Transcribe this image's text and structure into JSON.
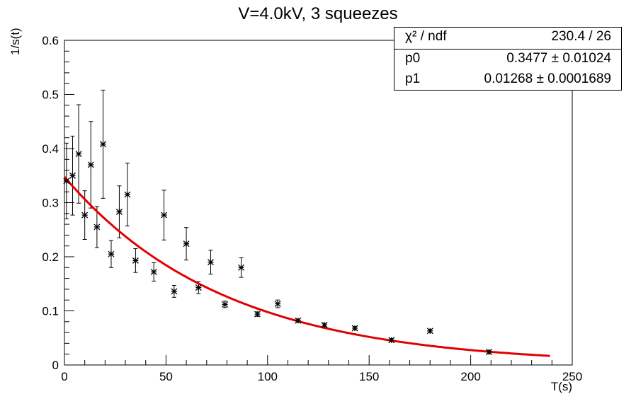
{
  "title": "V=4.0kV, 3 squeezes",
  "stats": {
    "header_key": "χ² / ndf",
    "header_value": "230.4 / 26",
    "rows": [
      {
        "name": "p0",
        "value": "0.3477 ± 0.01024"
      },
      {
        "name": "p1",
        "value": "0.01268 ± 0.0001689"
      }
    ]
  },
  "chart_data": {
    "type": "scatter",
    "title": "V=4.0kV, 3 squeezes",
    "xlabel": "T(s)",
    "ylabel": "1/s(t)",
    "xlim": [
      0,
      250
    ],
    "ylim": [
      0,
      0.6
    ],
    "xticks": [
      0,
      50,
      100,
      150,
      200,
      250
    ],
    "yticks": [
      0,
      0.1,
      0.2,
      0.3,
      0.4,
      0.5,
      0.6
    ],
    "grid": false,
    "colors": {
      "points": "#000000",
      "fit": "#e00000"
    },
    "series": [
      {
        "x": [
          1,
          4,
          7,
          10,
          13,
          16,
          19,
          23,
          27,
          31,
          35,
          44,
          49,
          54,
          60,
          66,
          72,
          79,
          87,
          95,
          105,
          115,
          128,
          143,
          161,
          180,
          209
        ],
        "y": [
          0.34,
          0.35,
          0.39,
          0.277,
          0.37,
          0.255,
          0.408,
          0.205,
          0.283,
          0.315,
          0.193,
          0.172,
          0.277,
          0.136,
          0.224,
          0.143,
          0.19,
          0.112,
          0.18,
          0.094,
          0.113,
          0.082,
          0.074,
          0.068,
          0.046,
          0.063,
          0.024
        ],
        "err": [
          0.07,
          0.073,
          0.091,
          0.045,
          0.08,
          0.038,
          0.1,
          0.025,
          0.048,
          0.058,
          0.022,
          0.017,
          0.046,
          0.011,
          0.03,
          0.011,
          0.022,
          0.006,
          0.018,
          0.004,
          0.007,
          0.003,
          0.003,
          0.003,
          0.003,
          0.003,
          0.003
        ]
      }
    ],
    "fit": {
      "p0": 0.3477,
      "p1": 0.01268,
      "x_range": [
        0,
        239
      ]
    }
  }
}
